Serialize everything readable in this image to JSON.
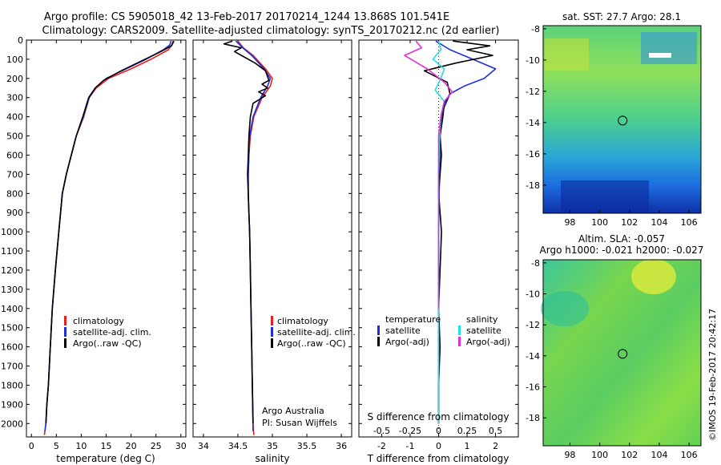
{
  "header": {
    "line1": "Argo profile: CS 5905018_42 13-Feb-2017 20170214_1244 13.868S 101.541E",
    "line2": "Climatology: CARS2009. Satellite-adjusted climatology: synTS_20170212.nc (2d earlier)"
  },
  "colors": {
    "climatology": "#e8201a",
    "satellite": "#1f2fe0",
    "argo": "#000000",
    "sal_satellite": "#20e0e8",
    "sal_argo": "#e030d8"
  },
  "chart_data": [
    {
      "type": "line",
      "xlabel": "temperature (deg C)",
      "xlim": [
        -1,
        31
      ],
      "ylim": [
        2070,
        0
      ],
      "xticks": [
        0,
        5,
        10,
        15,
        20,
        25,
        30
      ],
      "yticks": [
        0,
        100,
        200,
        300,
        400,
        500,
        600,
        700,
        800,
        900,
        1000,
        1100,
        1200,
        1300,
        1400,
        1500,
        1600,
        1700,
        1800,
        1900,
        2000
      ],
      "legend": [
        "climatology",
        "satellite-adj. clim.",
        "Argo(..raw -QC)"
      ],
      "legend_position": "lower-right",
      "series": [
        {
          "name": "climatology",
          "color": "#e8201a",
          "x": [
            28.4,
            28.2,
            27.5,
            24,
            20,
            15.5,
            13,
            11.6,
            10.5,
            9,
            8,
            7,
            6.2,
            5.5,
            4.8,
            4.2,
            3.8,
            3.4,
            3.1,
            2.9,
            2.6
          ],
          "y": [
            5,
            25,
            50,
            100,
            150,
            200,
            250,
            300,
            400,
            500,
            600,
            700,
            800,
            1000,
            1200,
            1400,
            1600,
            1800,
            1900,
            2000,
            2060
          ]
        },
        {
          "name": "satellite-adj. clim.",
          "color": "#1f2fe0",
          "x": [
            28.0,
            27.8,
            26.5,
            23,
            19,
            15,
            12.8,
            11.6,
            10.4,
            9,
            8,
            7,
            6.2,
            5.5,
            4.8,
            4.2,
            3.8,
            3.4,
            3.1,
            2.9,
            2.7
          ],
          "y": [
            5,
            25,
            50,
            100,
            150,
            200,
            250,
            300,
            400,
            500,
            600,
            700,
            800,
            1000,
            1200,
            1400,
            1600,
            1800,
            1900,
            2000,
            2040
          ]
        },
        {
          "name": "Argo(..raw -QC)",
          "color": "#000000",
          "x": [
            28.6,
            28.1,
            26,
            22,
            18,
            14.5,
            12.8,
            11.5,
            10.3,
            9,
            8,
            7,
            6.2,
            5.5,
            4.8,
            4.2,
            3.8,
            3.4,
            3.1,
            2.9
          ],
          "y": [
            5,
            30,
            60,
            110,
            160,
            210,
            250,
            300,
            400,
            500,
            600,
            700,
            800,
            1000,
            1200,
            1400,
            1600,
            1800,
            1900,
            2000
          ]
        }
      ]
    },
    {
      "type": "line",
      "xlabel": "salinity",
      "xlim": [
        33.85,
        36.15
      ],
      "ylim": [
        2070,
        0
      ],
      "xticks": [
        34,
        34.5,
        35,
        35.5,
        36
      ],
      "legend": [
        "climatology",
        "satellite-adj. clim.",
        "Argo(..raw -QC)"
      ],
      "legend_position": "lower-right",
      "annotation": [
        "Argo Australia",
        "PI: Susan Wijffels"
      ],
      "series": [
        {
          "name": "climatology",
          "color": "#e8201a",
          "x": [
            34.5,
            34.58,
            34.72,
            34.9,
            35.0,
            34.97,
            34.85,
            34.73,
            34.68,
            34.66,
            34.65,
            34.65,
            34.66,
            34.67,
            34.68,
            34.69,
            34.7,
            34.71,
            34.72,
            34.73
          ],
          "y": [
            5,
            40,
            80,
            150,
            200,
            240,
            300,
            400,
            500,
            600,
            700,
            800,
            900,
            1000,
            1200,
            1400,
            1600,
            1800,
            2000,
            2060
          ]
        },
        {
          "name": "satellite-adj. clim.",
          "color": "#1f2fe0",
          "x": [
            34.47,
            34.57,
            34.7,
            34.88,
            34.97,
            34.93,
            34.83,
            34.72,
            34.67,
            34.66,
            34.65,
            34.65,
            34.66,
            34.67,
            34.68,
            34.69,
            34.7,
            34.71,
            34.72
          ],
          "y": [
            5,
            40,
            80,
            150,
            200,
            240,
            300,
            400,
            500,
            600,
            700,
            800,
            900,
            1000,
            1200,
            1400,
            1600,
            1800,
            2040
          ]
        },
        {
          "name": "Argo(..raw -QC)",
          "color": "#000000",
          "x": [
            34.42,
            34.3,
            34.55,
            34.45,
            34.6,
            34.75,
            34.9,
            34.95,
            34.85,
            34.93,
            34.8,
            34.9,
            34.72,
            34.68,
            34.66,
            34.65,
            34.64,
            34.66,
            34.67,
            34.68,
            34.69,
            34.7,
            34.71,
            34.72
          ],
          "y": [
            5,
            20,
            40,
            60,
            90,
            120,
            160,
            210,
            230,
            250,
            270,
            290,
            330,
            400,
            500,
            600,
            700,
            900,
            1000,
            1200,
            1400,
            1600,
            1800,
            2000
          ]
        }
      ]
    },
    {
      "type": "line",
      "xlabel": "T difference from climatology",
      "xlabel_top": "S difference from climatology",
      "xlim": [
        -2.8,
        2.8
      ],
      "ylim": [
        2070,
        0
      ],
      "xticks": [
        -2,
        -1,
        0,
        1,
        2
      ],
      "sticks": [
        -0.5,
        -0.25,
        0,
        0.25,
        0.5
      ],
      "sticklabels": [
        "-0.5",
        "-0.25",
        "0",
        "0.25",
        "0.5"
      ],
      "legend": [
        "temperature",
        "satellite",
        "Argo(-adj)",
        "salinity",
        "satellite",
        "Argo(-adj)"
      ],
      "legend_position": "lower-center",
      "series": [
        {
          "name": "satellite",
          "color": "#1f2fe0",
          "x": [
            -0.1,
            0.4,
            1.2,
            2.0,
            1.6,
            0.9,
            0.4,
            0.2,
            0.1,
            0.05,
            0.05,
            0.02,
            0.0,
            0.0,
            0.0,
            0.0,
            0.0,
            0.0
          ],
          "y": [
            5,
            50,
            100,
            150,
            200,
            240,
            280,
            350,
            400,
            500,
            600,
            800,
            1000,
            1200,
            1400,
            1600,
            1800,
            2000
          ]
        },
        {
          "name": "Argo(-adj)",
          "color": "#000000",
          "x": [
            0.5,
            1.8,
            1.0,
            1.9,
            0.6,
            -0.5,
            0.3,
            0.4,
            0.2,
            0.15,
            0.05,
            0.1,
            0.05,
            0.0,
            0.1,
            0.05,
            0.0,
            0.05,
            0.0,
            0.0
          ],
          "y": [
            5,
            30,
            50,
            80,
            120,
            160,
            220,
            280,
            330,
            400,
            500,
            600,
            700,
            800,
            1000,
            1200,
            1400,
            1600,
            1800,
            2000
          ]
        },
        {
          "name": "satellite",
          "color": "#20e0e8",
          "x": [
            0.0,
            0.02,
            -0.05,
            0.05,
            0.02,
            -0.03,
            0.05,
            0.02,
            0.01,
            0.0,
            0.0,
            0.0,
            0.0,
            0.0
          ],
          "y": [
            5,
            50,
            100,
            150,
            200,
            260,
            320,
            400,
            500,
            700,
            1000,
            1400,
            1800,
            2000
          ]
        },
        {
          "name": "Argo(-adj)",
          "color": "#e030d8",
          "x": [
            -0.2,
            -0.15,
            -0.3,
            -0.1,
            0.05,
            0.12,
            0.05,
            0.02,
            0.0,
            0.0,
            0.0,
            0.0
          ],
          "y": [
            5,
            40,
            80,
            150,
            220,
            270,
            320,
            400,
            500,
            800,
            1200,
            1400
          ]
        }
      ]
    },
    {
      "type": "heatmap",
      "title": "sat. SST: 27.7 Argo: 28.1",
      "xlim": [
        96.2,
        106.8
      ],
      "ylim": [
        -19.8,
        -7.8
      ],
      "xticks": [
        98,
        100,
        102,
        104,
        106
      ],
      "yticks": [
        -8,
        -10,
        -12,
        -14,
        -16,
        -18
      ],
      "marker": {
        "lon": 101.54,
        "lat": -13.87
      }
    },
    {
      "type": "heatmap",
      "title": "Altim. SLA: -0.057",
      "subtitle": "Argo h1000: -0.021 h2000: -0.027",
      "xlim": [
        96.2,
        106.8
      ],
      "ylim": [
        -19.8,
        -7.8
      ],
      "xticks": [
        98,
        100,
        102,
        104,
        106
      ],
      "yticks": [
        -8,
        -10,
        -12,
        -14,
        -16,
        -18
      ],
      "marker": {
        "lon": 101.54,
        "lat": -13.87
      }
    }
  ],
  "footer": {
    "stamp": "©IMOS 19-Feb-2017 20:42:17"
  }
}
